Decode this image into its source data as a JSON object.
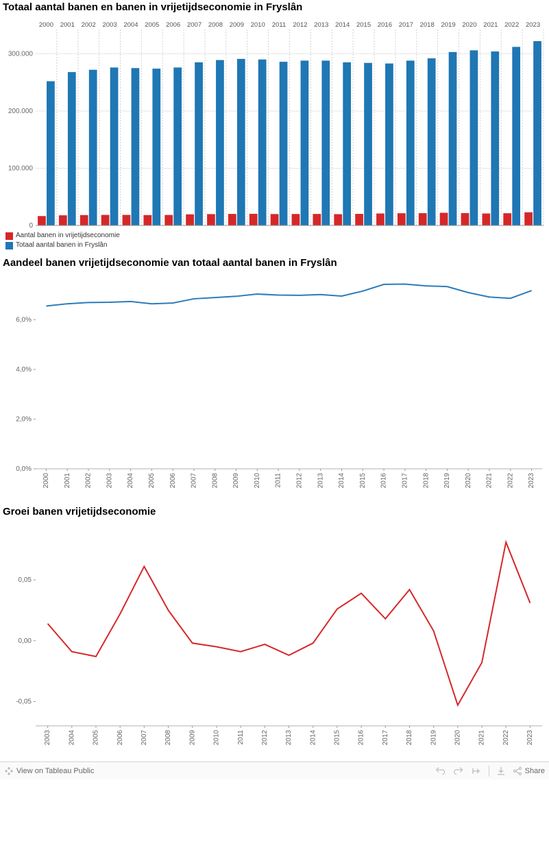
{
  "colors": {
    "blue": "#1f77b4",
    "red": "#d62728",
    "line_blue": "#2b7bba",
    "line_red": "#d62728",
    "axis": "#b0b0b0",
    "grid": "#e5e5e5",
    "dash": "#d0d0d0",
    "text": "#666666",
    "title": "#000000",
    "bg": "#ffffff"
  },
  "chart1": {
    "title": "Totaal aantal banen en banen in vrijetijdseconomie in Fryslân",
    "type": "bar",
    "years": [
      2000,
      2001,
      2002,
      2003,
      2004,
      2005,
      2006,
      2007,
      2008,
      2009,
      2010,
      2011,
      2012,
      2013,
      2014,
      2015,
      2016,
      2017,
      2018,
      2019,
      2020,
      2021,
      2022,
      2023
    ],
    "series": [
      {
        "name": "Aantal banen in vrijetijdseconomie",
        "color": "#d62728",
        "values": [
          16500,
          17800,
          18200,
          18500,
          18500,
          18200,
          18400,
          19500,
          19900,
          20200,
          20400,
          20000,
          20100,
          20200,
          19800,
          20300,
          21000,
          21400,
          21500,
          22200,
          21700,
          21000,
          21400,
          23100
        ]
      },
      {
        "name": "Totaal aantal banen in Fryslân",
        "color": "#1f77b4",
        "values": [
          252000,
          268000,
          272000,
          276000,
          275000,
          274000,
          276000,
          285000,
          289000,
          291000,
          290000,
          286000,
          288000,
          288000,
          285000,
          284000,
          283000,
          288000,
          292000,
          303000,
          306000,
          304000,
          312000,
          322000
        ]
      }
    ],
    "yaxis": {
      "min": 0,
      "max": 340000,
      "ticks": [
        0,
        100000,
        200000,
        300000
      ],
      "tick_labels": [
        "0",
        "100.000",
        "200.000",
        "300.000"
      ]
    },
    "xaxis_fontsize": 9,
    "yaxis_fontsize": 10
  },
  "chart2": {
    "title": "Aandeel banen vrijetijdseconomie van totaal aantal banen in Fryslân",
    "type": "line",
    "years": [
      2000,
      2001,
      2002,
      2003,
      2004,
      2005,
      2006,
      2007,
      2008,
      2009,
      2010,
      2011,
      2012,
      2013,
      2014,
      2015,
      2016,
      2017,
      2018,
      2019,
      2020,
      2021,
      2022,
      2023
    ],
    "series": [
      {
        "name": "Aandeel",
        "color": "#2b7bba",
        "values": [
          6.55,
          6.64,
          6.69,
          6.7,
          6.73,
          6.64,
          6.67,
          6.84,
          6.89,
          6.94,
          7.03,
          6.99,
          6.98,
          7.01,
          6.95,
          7.15,
          7.42,
          7.43,
          7.36,
          7.33,
          7.09,
          6.91,
          6.86,
          7.17
        ]
      }
    ],
    "yaxis": {
      "min": 0,
      "max": 7.5,
      "ticks": [
        0,
        2,
        4,
        6
      ],
      "tick_labels": [
        "0,0%",
        "2,0%",
        "4,0%",
        "6,0%"
      ]
    },
    "line_width": 2
  },
  "chart3": {
    "title": "Groei banen vrijetijdseconomie",
    "type": "line",
    "years": [
      2003,
      2004,
      2005,
      2006,
      2007,
      2008,
      2009,
      2010,
      2011,
      2012,
      2013,
      2014,
      2015,
      2016,
      2017,
      2018,
      2019,
      2020,
      2021,
      2022,
      2023
    ],
    "series": [
      {
        "name": "Groei",
        "color": "#d62728",
        "values": [
          0.014,
          -0.009,
          -0.013,
          0.022,
          0.061,
          0.025,
          -0.002,
          -0.005,
          -0.009,
          -0.003,
          -0.012,
          -0.002,
          0.026,
          0.039,
          0.018,
          0.042,
          0.008,
          -0.053,
          -0.018,
          0.081,
          0.031
        ]
      }
    ],
    "yaxis": {
      "min": -0.07,
      "max": 0.09,
      "ticks": [
        -0.05,
        0,
        0.05
      ],
      "tick_labels": [
        "-0,05",
        "0,00",
        "0,05"
      ]
    },
    "line_width": 2
  },
  "toolbar": {
    "view_label": "View on Tableau Public",
    "share_label": "Share"
  }
}
